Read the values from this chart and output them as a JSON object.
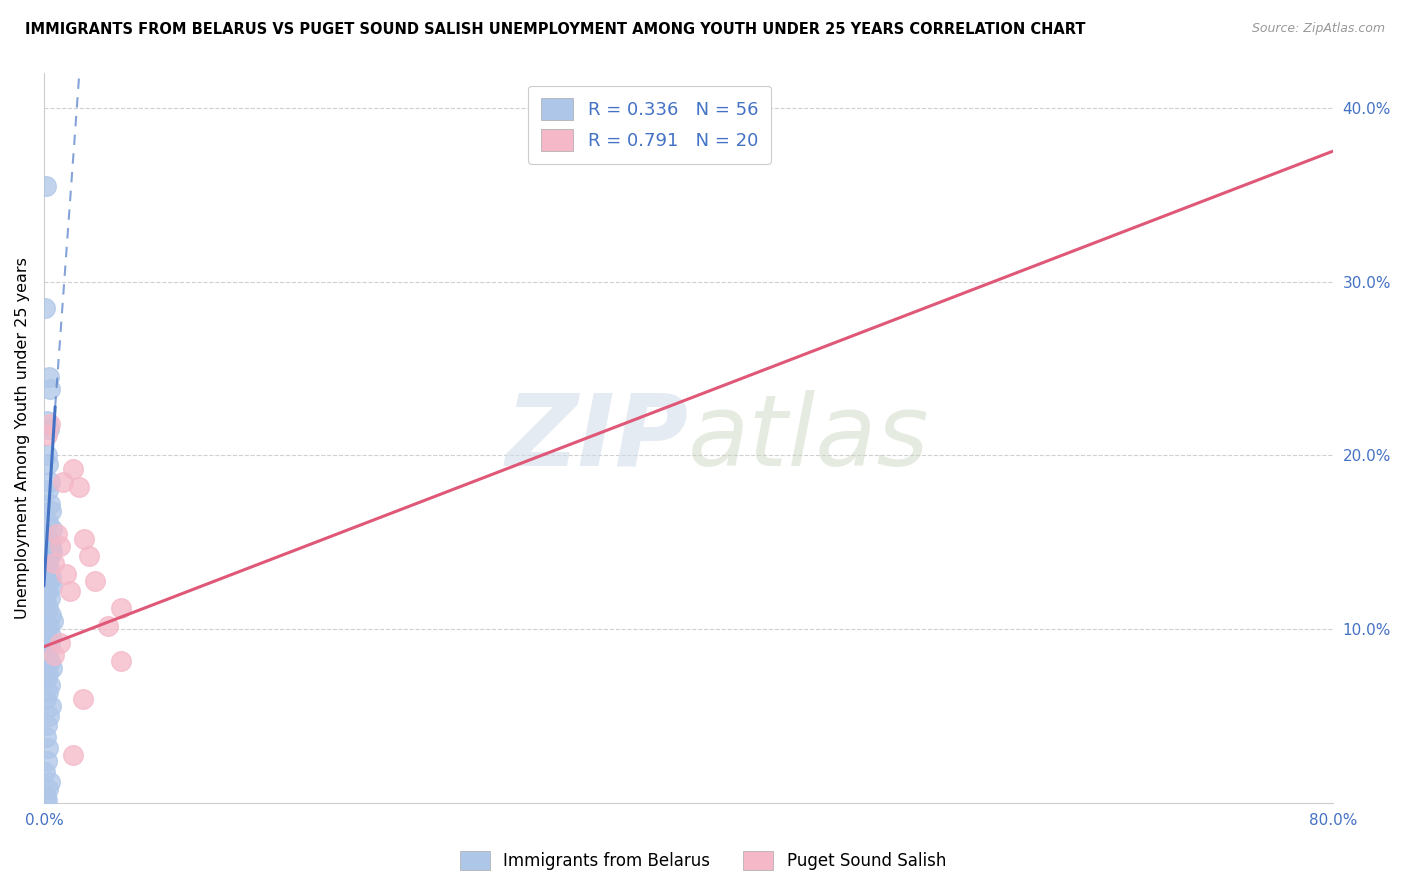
{
  "title": "IMMIGRANTS FROM BELARUS VS PUGET SOUND SALISH UNEMPLOYMENT AMONG YOUTH UNDER 25 YEARS CORRELATION CHART",
  "source": "Source: ZipAtlas.com",
  "ylabel": "Unemployment Among Youth under 25 years",
  "xlim": [
    0,
    0.8
  ],
  "ylim": [
    0,
    0.42
  ],
  "xticks": [
    0.0,
    0.1,
    0.2,
    0.3,
    0.4,
    0.5,
    0.6,
    0.7,
    0.8
  ],
  "xticklabels": [
    "0.0%",
    "",
    "",
    "",
    "",
    "",
    "",
    "",
    "80.0%"
  ],
  "yticks_right": [
    0.1,
    0.2,
    0.3,
    0.4
  ],
  "ytick_labels_right": [
    "10.0%",
    "20.0%",
    "30.0%",
    "40.0%"
  ],
  "legend_r1": "0.336",
  "legend_n1": "56",
  "legend_r2": "0.791",
  "legend_n2": "20",
  "watermark_zip": "ZIP",
  "watermark_atlas": "atlas",
  "blue_color": "#aec6e8",
  "blue_line_color": "#4472c4",
  "pink_color": "#f4b8c8",
  "pink_line_color": "#e05878",
  "scatter_blue": [
    [
      0.0012,
      0.355
    ],
    [
      0.0008,
      0.285
    ],
    [
      0.003,
      0.245
    ],
    [
      0.0038,
      0.238
    ],
    [
      0.0022,
      0.22
    ],
    [
      0.0032,
      0.215
    ],
    [
      0.0018,
      0.2
    ],
    [
      0.0028,
      0.195
    ],
    [
      0.004,
      0.185
    ],
    [
      0.0025,
      0.18
    ],
    [
      0.0035,
      0.172
    ],
    [
      0.0045,
      0.168
    ],
    [
      0.0028,
      0.162
    ],
    [
      0.0048,
      0.158
    ],
    [
      0.0015,
      0.155
    ],
    [
      0.0035,
      0.15
    ],
    [
      0.0042,
      0.148
    ],
    [
      0.0052,
      0.145
    ],
    [
      0.0038,
      0.142
    ],
    [
      0.0028,
      0.14
    ],
    [
      0.0018,
      0.138
    ],
    [
      0.0032,
      0.135
    ],
    [
      0.0022,
      0.132
    ],
    [
      0.0042,
      0.13
    ],
    [
      0.0035,
      0.128
    ],
    [
      0.0048,
      0.125
    ],
    [
      0.0025,
      0.122
    ],
    [
      0.0038,
      0.118
    ],
    [
      0.0015,
      0.115
    ],
    [
      0.0028,
      0.112
    ],
    [
      0.0042,
      0.108
    ],
    [
      0.0055,
      0.105
    ],
    [
      0.0032,
      0.102
    ],
    [
      0.0022,
      0.1
    ],
    [
      0.0045,
      0.096
    ],
    [
      0.0035,
      0.092
    ],
    [
      0.0025,
      0.088
    ],
    [
      0.0015,
      0.085
    ],
    [
      0.0038,
      0.082
    ],
    [
      0.0048,
      0.078
    ],
    [
      0.0028,
      0.075
    ],
    [
      0.0018,
      0.072
    ],
    [
      0.0035,
      0.068
    ],
    [
      0.0025,
      0.064
    ],
    [
      0.0012,
      0.06
    ],
    [
      0.0042,
      0.056
    ],
    [
      0.0032,
      0.05
    ],
    [
      0.0022,
      0.045
    ],
    [
      0.0015,
      0.038
    ],
    [
      0.0028,
      0.032
    ],
    [
      0.0018,
      0.024
    ],
    [
      0.0008,
      0.018
    ],
    [
      0.0035,
      0.012
    ],
    [
      0.0025,
      0.008
    ],
    [
      0.0012,
      0.004
    ],
    [
      0.0022,
      0.002
    ]
  ],
  "scatter_pink": [
    [
      0.0035,
      0.218
    ],
    [
      0.0022,
      0.212
    ],
    [
      0.018,
      0.192
    ],
    [
      0.012,
      0.185
    ],
    [
      0.022,
      0.182
    ],
    [
      0.008,
      0.155
    ],
    [
      0.025,
      0.152
    ],
    [
      0.01,
      0.148
    ],
    [
      0.028,
      0.142
    ],
    [
      0.006,
      0.138
    ],
    [
      0.014,
      0.132
    ],
    [
      0.032,
      0.128
    ],
    [
      0.016,
      0.122
    ],
    [
      0.048,
      0.112
    ],
    [
      0.04,
      0.102
    ],
    [
      0.01,
      0.092
    ],
    [
      0.006,
      0.085
    ],
    [
      0.048,
      0.082
    ],
    [
      0.024,
      0.06
    ],
    [
      0.018,
      0.028
    ]
  ],
  "pink_trendline": [
    [
      0.0,
      0.09
    ],
    [
      0.8,
      0.375
    ]
  ],
  "blue_trendline_solid": [
    [
      0.0,
      0.125
    ],
    [
      0.007,
      0.228
    ]
  ],
  "blue_trendline_dashed": [
    [
      0.007,
      0.228
    ],
    [
      0.022,
      0.42
    ]
  ]
}
